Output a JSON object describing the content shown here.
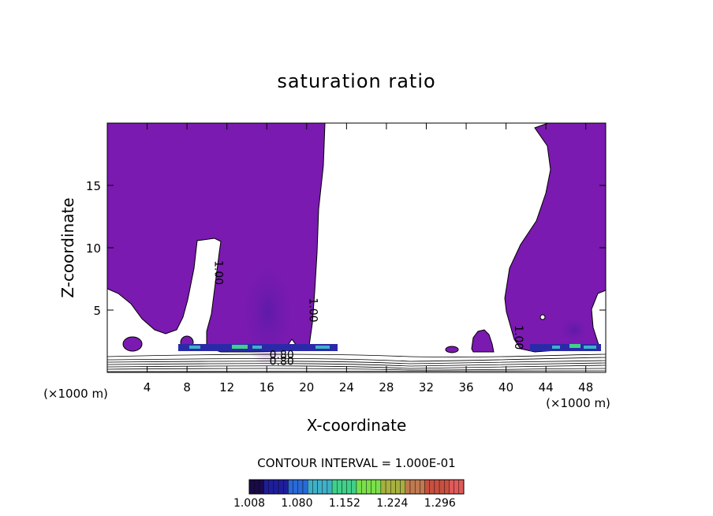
{
  "chart_data": {
    "type": "contour",
    "title": "saturation ratio",
    "xlabel": "X-coordinate",
    "ylabel": "Z-coordinate",
    "x_unit": "(×1000 m)",
    "z_unit": "(×1000 m)",
    "xlim": [
      0,
      50
    ],
    "zlim": [
      0,
      20
    ],
    "x_ticks": [
      4,
      8,
      12,
      16,
      20,
      24,
      28,
      32,
      36,
      40,
      44,
      48
    ],
    "z_ticks": [
      5,
      10,
      15
    ],
    "contour_labels": [
      {
        "text": "1.00",
        "x": 10.8,
        "z": 8.0,
        "angle": 90
      },
      {
        "text": "1.00",
        "x": 20.3,
        "z": 5.0,
        "angle": 90
      },
      {
        "text": "1.00",
        "x": 40.9,
        "z": 2.8,
        "angle": 90
      },
      {
        "text": "0.80",
        "x": 17.5,
        "z": 1.1,
        "angle": 0
      },
      {
        "text": "0.80",
        "x": 17.5,
        "z": 0.6,
        "angle": 0
      }
    ],
    "contour_interval_text": "CONTOUR INTERVAL = 1.000E-01",
    "colorbar": {
      "min": 1.008,
      "max": 1.332,
      "tick_labels": [
        "1.008",
        "1.080",
        "1.152",
        "1.224",
        "1.296"
      ],
      "colors": [
        "#1a0a4a",
        "#1e1e9c",
        "#2a6ad8",
        "#3fb0c8",
        "#40d08a",
        "#7ae04a",
        "#a8b040",
        "#c07a50",
        "#c85040",
        "#e05a5a"
      ]
    },
    "fill_color": "#7a1ab0",
    "grid": false
  }
}
